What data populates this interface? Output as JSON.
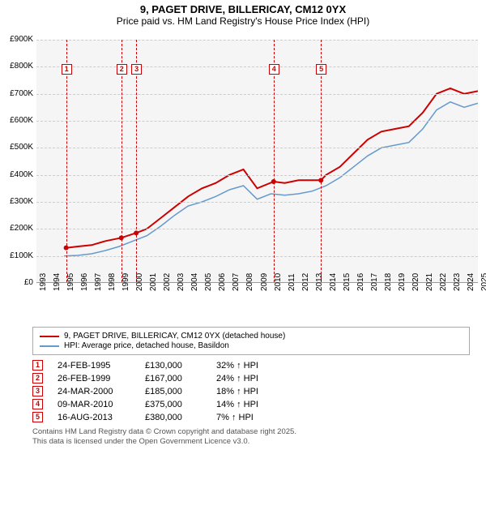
{
  "title": "9, PAGET DRIVE, BILLERICAY, CM12 0YX",
  "subtitle": "Price paid vs. HM Land Registry's House Price Index (HPI)",
  "chart": {
    "type": "line",
    "background_color": "#f5f5f5",
    "grid_color": "#cccccc",
    "ylim": [
      0,
      900000
    ],
    "ytick_step": 100000,
    "yticks": [
      "£0",
      "£100K",
      "£200K",
      "£300K",
      "£400K",
      "£500K",
      "£600K",
      "£700K",
      "£800K",
      "£900K"
    ],
    "x_start_year": 1993,
    "x_end_year": 2025,
    "xticks": [
      "1993",
      "1994",
      "1995",
      "1996",
      "1997",
      "1998",
      "1999",
      "2000",
      "2001",
      "2002",
      "2003",
      "2004",
      "2005",
      "2006",
      "2007",
      "2008",
      "2009",
      "2010",
      "2011",
      "2012",
      "2013",
      "2014",
      "2015",
      "2016",
      "2017",
      "2018",
      "2019",
      "2020",
      "2021",
      "2022",
      "2023",
      "2024",
      "2025"
    ],
    "series": [
      {
        "name": "9, PAGET DRIVE, BILLERICAY, CM12 0YX (detached house)",
        "color": "#cc0000",
        "line_width": 2,
        "points": [
          [
            1995.15,
            130000
          ],
          [
            1996,
            135000
          ],
          [
            1997,
            140000
          ],
          [
            1998,
            155000
          ],
          [
            1999.15,
            167000
          ],
          [
            2000.23,
            185000
          ],
          [
            2001,
            200000
          ],
          [
            2002,
            240000
          ],
          [
            2003,
            280000
          ],
          [
            2004,
            320000
          ],
          [
            2005,
            350000
          ],
          [
            2006,
            370000
          ],
          [
            2007,
            400000
          ],
          [
            2008,
            420000
          ],
          [
            2009,
            350000
          ],
          [
            2010.19,
            375000
          ],
          [
            2011,
            370000
          ],
          [
            2012,
            380000
          ],
          [
            2013.62,
            380000
          ],
          [
            2014,
            400000
          ],
          [
            2015,
            430000
          ],
          [
            2016,
            480000
          ],
          [
            2017,
            530000
          ],
          [
            2018,
            560000
          ],
          [
            2019,
            570000
          ],
          [
            2020,
            580000
          ],
          [
            2021,
            630000
          ],
          [
            2022,
            700000
          ],
          [
            2023,
            720000
          ],
          [
            2024,
            700000
          ],
          [
            2025,
            710000
          ]
        ]
      },
      {
        "name": "HPI: Average price, detached house, Basildon",
        "color": "#6699cc",
        "line_width": 1.5,
        "points": [
          [
            1995,
            100000
          ],
          [
            1996,
            102000
          ],
          [
            1997,
            108000
          ],
          [
            1998,
            120000
          ],
          [
            1999,
            135000
          ],
          [
            2000,
            155000
          ],
          [
            2001,
            175000
          ],
          [
            2002,
            210000
          ],
          [
            2003,
            250000
          ],
          [
            2004,
            285000
          ],
          [
            2005,
            300000
          ],
          [
            2006,
            320000
          ],
          [
            2007,
            345000
          ],
          [
            2008,
            360000
          ],
          [
            2009,
            310000
          ],
          [
            2010,
            330000
          ],
          [
            2011,
            325000
          ],
          [
            2012,
            330000
          ],
          [
            2013,
            340000
          ],
          [
            2014,
            360000
          ],
          [
            2015,
            390000
          ],
          [
            2016,
            430000
          ],
          [
            2017,
            470000
          ],
          [
            2018,
            500000
          ],
          [
            2019,
            510000
          ],
          [
            2020,
            520000
          ],
          [
            2021,
            570000
          ],
          [
            2022,
            640000
          ],
          [
            2023,
            670000
          ],
          [
            2024,
            650000
          ],
          [
            2025,
            665000
          ]
        ]
      }
    ],
    "markers": [
      {
        "n": "1",
        "year": 1995.15,
        "box_y": 30
      },
      {
        "n": "2",
        "year": 1999.15,
        "box_y": 30
      },
      {
        "n": "3",
        "year": 2000.23,
        "box_y": 30
      },
      {
        "n": "4",
        "year": 2010.19,
        "box_y": 30
      },
      {
        "n": "5",
        "year": 2013.62,
        "box_y": 30
      }
    ]
  },
  "legend": [
    {
      "color": "#cc0000",
      "label": "9, PAGET DRIVE, BILLERICAY, CM12 0YX (detached house)"
    },
    {
      "color": "#6699cc",
      "label": "HPI: Average price, detached house, Basildon"
    }
  ],
  "transactions": [
    {
      "n": "1",
      "date": "24-FEB-1995",
      "price": "£130,000",
      "pct": "32% ↑ HPI"
    },
    {
      "n": "2",
      "date": "26-FEB-1999",
      "price": "£167,000",
      "pct": "24% ↑ HPI"
    },
    {
      "n": "3",
      "date": "24-MAR-2000",
      "price": "£185,000",
      "pct": "18% ↑ HPI"
    },
    {
      "n": "4",
      "date": "09-MAR-2010",
      "price": "£375,000",
      "pct": "14% ↑ HPI"
    },
    {
      "n": "5",
      "date": "16-AUG-2013",
      "price": "£380,000",
      "pct": "7% ↑ HPI"
    }
  ],
  "footer_line1": "Contains HM Land Registry data © Crown copyright and database right 2025.",
  "footer_line2": "This data is licensed under the Open Government Licence v3.0."
}
